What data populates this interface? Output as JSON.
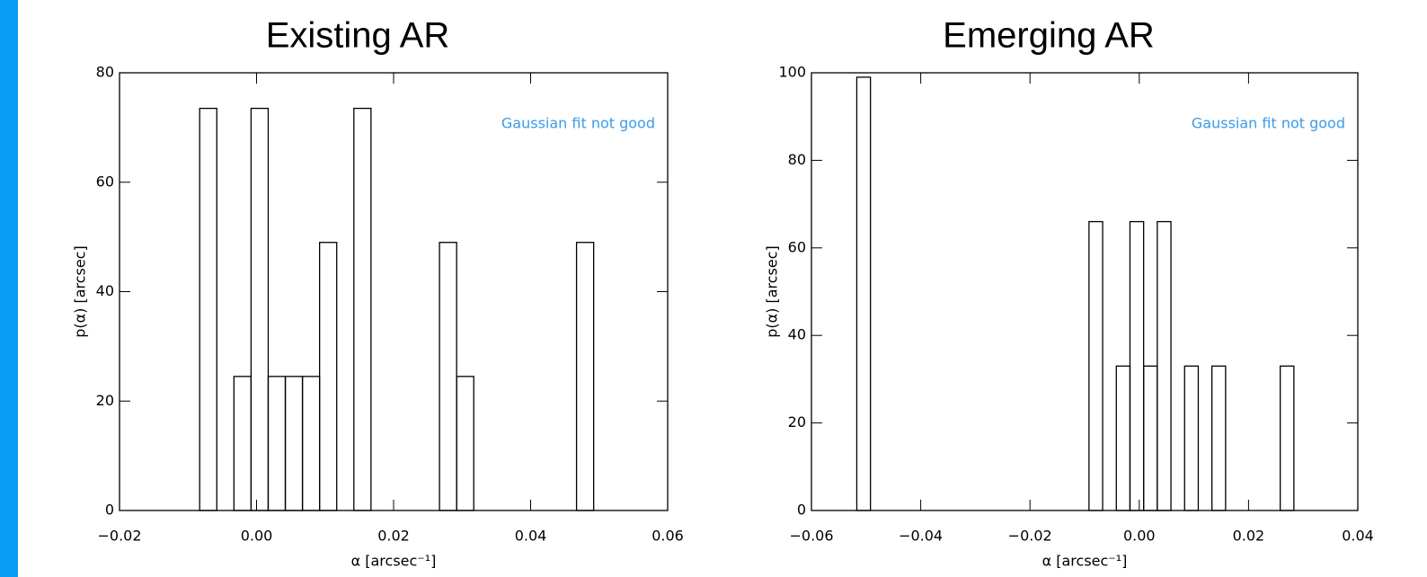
{
  "chart_data": [
    {
      "type": "histogram",
      "title": "Existing AR",
      "xlabel": "α [arcsec⁻¹]",
      "ylabel": "p(α) [arcsec]",
      "annotation": "Gaussian fit not good",
      "bins": [
        -0.0083,
        -0.0058,
        -0.0033,
        -0.0008,
        0.0017,
        0.0042,
        0.0067,
        0.0092,
        0.0117,
        0.0142,
        0.0167,
        0.0192,
        0.0217,
        0.0242,
        0.0267,
        0.0292,
        0.0317,
        0.0342,
        0.0367,
        0.0392,
        0.0417,
        0.0442,
        0.0467,
        0.0492
      ],
      "values": [
        73.5,
        0,
        24.5,
        73.5,
        24.5,
        24.5,
        24.5,
        49,
        0,
        73.5,
        0,
        0,
        0,
        0,
        49,
        24.5,
        0,
        0,
        0,
        0,
        0,
        0,
        49
      ],
      "xlim": [
        -0.02,
        0.06
      ],
      "xticks": [
        {
          "value": -0.02,
          "label": "−0.02"
        },
        {
          "value": 0,
          "label": "0.00"
        },
        0.02,
        0.04,
        0.06
      ],
      "ylim": [
        0,
        80
      ],
      "yticks": [
        0,
        20,
        40,
        60,
        80
      ],
      "color": "#000000",
      "annotation_color": "#3a9ae8"
    },
    {
      "type": "histogram",
      "title": "Emerging AR",
      "xlabel": "α [arcsec⁻¹]",
      "ylabel": "p(α) [arcsec]",
      "annotation": "Gaussian fit not good",
      "bins": [
        -0.0517,
        -0.0492,
        -0.0467,
        -0.0442,
        -0.0417,
        -0.0392,
        -0.0367,
        -0.0342,
        -0.0317,
        -0.0292,
        -0.0267,
        -0.0242,
        -0.0217,
        -0.0192,
        -0.0167,
        -0.0142,
        -0.0117,
        -0.0092,
        -0.0067,
        -0.0042,
        -0.0017,
        0.0008,
        0.0033,
        0.0058,
        0.0083,
        0.0108,
        0.0133,
        0.0158,
        0.0183,
        0.0208,
        0.0233,
        0.0258,
        0.0283
      ],
      "values": [
        99,
        0,
        0,
        0,
        0,
        0,
        0,
        0,
        0,
        0,
        0,
        0,
        0,
        0,
        0,
        0,
        0,
        66,
        0,
        33,
        66,
        33,
        66,
        0,
        33,
        0,
        33,
        0,
        0,
        0,
        0,
        33
      ],
      "xlim": [
        -0.06,
        0.04
      ],
      "xticks": [
        {
          "value": -0.06,
          "label": "−0.06"
        },
        {
          "value": -0.04,
          "label": "−0.04"
        },
        {
          "value": -0.02,
          "label": "−0.02"
        },
        {
          "value": 0,
          "label": "0.00"
        },
        0.02,
        0.04
      ],
      "ylim": [
        0,
        100
      ],
      "yticks": [
        0,
        20,
        40,
        60,
        80,
        100
      ],
      "color": "#000000",
      "annotation_color": "#3a9ae8"
    }
  ]
}
